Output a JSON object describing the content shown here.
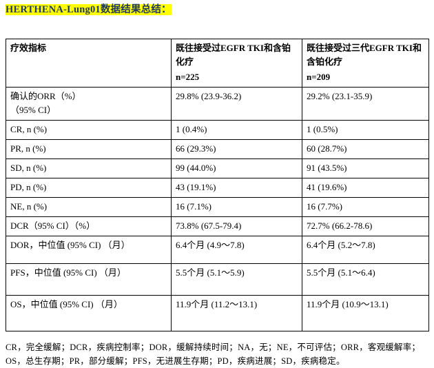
{
  "colors": {
    "title_text": "#1f3864",
    "title_highlight": "#ffff00",
    "table_border": "#000000"
  },
  "page": {
    "title": "HERTHENA-Lung01数据结果总结："
  },
  "table": {
    "col_headers": [
      {
        "label": "疗效指标",
        "n": ""
      },
      {
        "label": "既往接受过EGFR TKI和含铂化疗",
        "n": "n=225"
      },
      {
        "label": "既往接受过三代EGFR TKI和含铂化疗",
        "n": "n=209"
      }
    ],
    "rows": [
      {
        "label": "确认的ORR（%）\n（95% CI）",
        "v1": "29.8% (23.9-36.2)",
        "v2": "29.2% (23.1-35.9)"
      },
      {
        "label": "CR, n (%)",
        "v1": "1 (0.4%)",
        "v2": "1 (0.5%)"
      },
      {
        "label": "PR, n (%)",
        "v1": "66 (29.3%)",
        "v2": "60 (28.7%)"
      },
      {
        "label": "SD, n (%)",
        "v1": "99 (44.0%)",
        "v2": "91 (43.5%)"
      },
      {
        "label": "PD, n (%)",
        "v1": "43 (19.1%)",
        "v2": "41 (19.6%)"
      },
      {
        "label": "NE, n (%)",
        "v1": "16 (7.1%)",
        "v2": "16 (7.7%)"
      },
      {
        "label": "DCR（95% CI）（%）",
        "v1": "73.8% (67.5-79.4)",
        "v2": "72.7% (66.2-78.6)"
      },
      {
        "label": "DOR，中位值 (95% CI) （月）",
        "v1": "6.4个月 (4.9～7.8)",
        "v2": "6.4个月 (5.2～7.8)"
      },
      {
        "label": "PFS，中位值 (95% CI) （月）",
        "v1": "5.5个月 (5.1～5.9)",
        "v2": "5.5个月 (5.1～6.4)"
      },
      {
        "label": "OS，中位值 (95% CI) （月）",
        "v1": "11.9个月 (11.2～13.1)",
        "v2": "11.9个月 (10.9～13.1)"
      }
    ],
    "footnote": "CR，完全缓解；DCR，疾病控制率；DOR，缓解持续时间；NA，无；NE，不可评估；ORR，客观缓解率；OS，总生存期；PR，部分缓解；PFS，无进展生存期；PD，疾病进展；SD，疾病稳定。"
  }
}
